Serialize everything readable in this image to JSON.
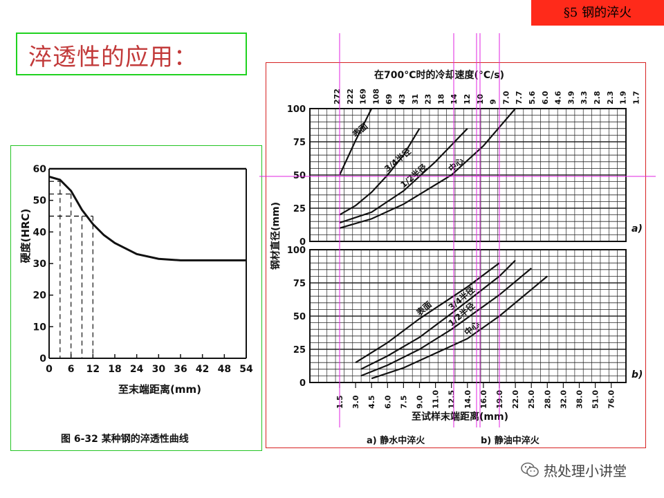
{
  "header": {
    "section_tag": "§5  钢的淬火"
  },
  "slide": {
    "title": "淬透性的应用："
  },
  "left_figure": {
    "caption": "图 6-32   某种钢的淬透性曲线",
    "xlabel": "至末端距离(mm)",
    "ylabel": "硬度(HRC)",
    "x_ticks": [
      "0",
      "6",
      "12",
      "18",
      "24",
      "30",
      "36",
      "42",
      "48",
      "54"
    ],
    "y_ticks": [
      "0",
      "10",
      "20",
      "30",
      "40",
      "50",
      "60"
    ]
  },
  "right_figure": {
    "top_axis_title": "在700°C时的冷却速度(°C/s)",
    "top_ticks": [
      "272",
      "222",
      "169",
      "108",
      "69",
      "43",
      "31",
      "23",
      "18",
      "14",
      "12",
      "10",
      "9",
      "7.0",
      "7.7",
      "5.6",
      "6.0",
      "4.6",
      "3.9",
      "3.3",
      "2.8",
      "2.3",
      "1.9",
      "1.7"
    ],
    "bottom_axis_title": "至试样末端距离(mm)",
    "bottom_ticks": [
      "1.5",
      "3.0",
      "4.5",
      "6.0",
      "7.5",
      "9.0",
      "11.0",
      "12.5",
      "14.0",
      "16.0",
      "19.0",
      "22.0",
      "25.0",
      "28.0",
      "32.0",
      "38.0",
      "51.0",
      "76.0"
    ],
    "ylabel": "钢材直径(mm)",
    "y_ticks": [
      "0",
      "25",
      "50",
      "75",
      "100"
    ],
    "panel_a_tag": "a)",
    "panel_b_tag": "b)",
    "caption_a": "a) 静水中淬火",
    "caption_b": "b) 静油中淬火",
    "curve_labels": {
      "surface": "表面",
      "three_quarter": "3/4半径",
      "half": "1/2半径",
      "center": "中心"
    }
  },
  "watermark": {
    "text": "热处理小讲堂",
    "icon": "wechat-icon"
  },
  "chart_data": [
    {
      "type": "line",
      "title": "",
      "xlabel": "至末端距离(mm)",
      "ylabel": "硬度(HRC)",
      "xlim": [
        0,
        54
      ],
      "ylim": [
        0,
        60
      ],
      "series": [
        {
          "x": [
            0,
            3,
            6,
            9,
            12,
            15,
            18,
            24,
            30,
            36,
            42,
            48,
            54
          ],
          "values": [
            57.5,
            56.5,
            53,
            47,
            42.5,
            39,
            36.5,
            33,
            31.5,
            31,
            31,
            31,
            31
          ]
        }
      ]
    },
    {
      "type": "line",
      "title": "",
      "panel": "a)",
      "xlabel": "至试样末端距离(mm)",
      "ylabel": "钢材直径(mm)",
      "ylim": [
        0,
        100
      ],
      "series": [
        {
          "name": "表面",
          "points": [
            [
              1.5,
              50
            ],
            [
              3.0,
              76
            ],
            [
              4.5,
              100
            ]
          ]
        },
        {
          "name": "3/4半径",
          "points": [
            [
              1.5,
              20
            ],
            [
              3.0,
              27
            ],
            [
              4.5,
              37
            ],
            [
              6.0,
              50
            ],
            [
              7.5,
              65
            ],
            [
              9.0,
              85
            ]
          ]
        },
        {
          "name": "1/2半径",
          "points": [
            [
              1.5,
              14
            ],
            [
              4.5,
              22
            ],
            [
              7.5,
              38
            ],
            [
              11.0,
              60
            ],
            [
              14.0,
              85
            ]
          ]
        },
        {
          "name": "中心",
          "points": [
            [
              1.5,
              10
            ],
            [
              4.5,
              17
            ],
            [
              7.5,
              28
            ],
            [
              12.5,
              50
            ],
            [
              16.0,
              72
            ],
            [
              22.0,
              100
            ]
          ]
        }
      ]
    },
    {
      "type": "line",
      "title": "",
      "panel": "b)",
      "xlabel": "至试样末端距离(mm)",
      "ylabel": "钢材直径(mm)",
      "ylim": [
        0,
        100
      ],
      "series": [
        {
          "name": "表面",
          "points": [
            [
              3.0,
              15
            ],
            [
              6.0,
              30
            ],
            [
              9.0,
              48
            ],
            [
              14.0,
              72
            ],
            [
              19.0,
              90
            ]
          ]
        },
        {
          "name": "3/4半径",
          "points": [
            [
              3.5,
              10
            ],
            [
              6.0,
              20
            ],
            [
              9.0,
              34
            ],
            [
              12.5,
              52
            ],
            [
              19.0,
              80
            ],
            [
              22.0,
              92
            ]
          ]
        },
        {
          "name": "1/2半径",
          "points": [
            [
              3.5,
              5
            ],
            [
              6.0,
              13
            ],
            [
              9.0,
              25
            ],
            [
              12.5,
              40
            ],
            [
              19.0,
              66
            ],
            [
              25.0,
              86
            ]
          ]
        },
        {
          "name": "中心",
          "points": [
            [
              4.5,
              3
            ],
            [
              7.5,
              11
            ],
            [
              11.0,
              22
            ],
            [
              14.0,
              33
            ],
            [
              19.0,
              50
            ],
            [
              28.0,
              80
            ]
          ]
        }
      ]
    }
  ]
}
